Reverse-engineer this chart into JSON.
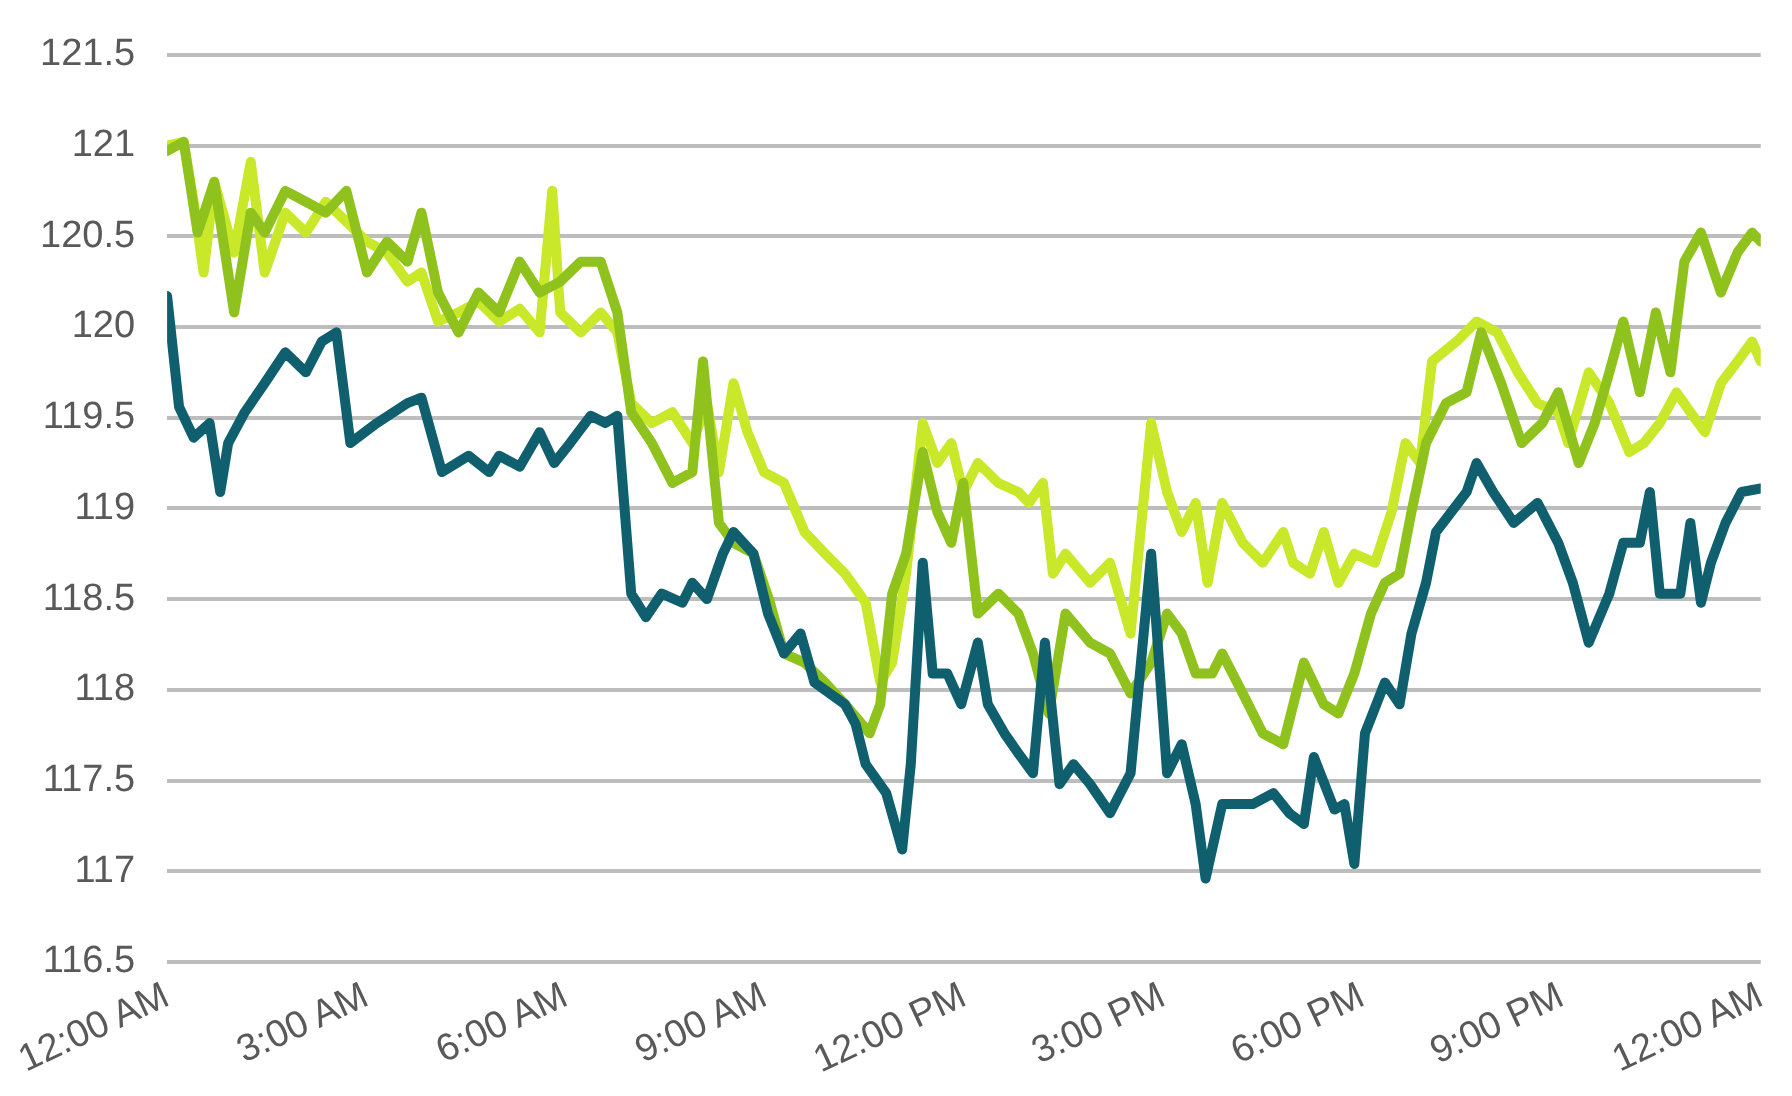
{
  "chart_data": {
    "type": "line",
    "xlim": [
      0,
      24
    ],
    "xticks": [
      {
        "value": 0,
        "label": "12:00 AM"
      },
      {
        "value": 3,
        "label": "3:00 AM"
      },
      {
        "value": 6,
        "label": "6:00 AM"
      },
      {
        "value": 9,
        "label": "9:00 AM"
      },
      {
        "value": 12,
        "label": "12:00 PM"
      },
      {
        "value": 15,
        "label": "3:00 PM"
      },
      {
        "value": 18,
        "label": "6:00 PM"
      },
      {
        "value": 21,
        "label": "9:00 PM"
      },
      {
        "value": 24,
        "label": "12:00 AM"
      }
    ],
    "ylim": [
      116.5,
      121.5
    ],
    "yticks": [
      116.5,
      117,
      117.5,
      118,
      118.5,
      119,
      119.5,
      120,
      120.5,
      121,
      121.5
    ],
    "grid": "y",
    "marker": "none",
    "line_style": "solid",
    "series": [
      {
        "color": "#0f5f6f",
        "x": [
          0,
          0.18,
          0.4,
          0.64,
          0.8,
          0.92,
          1.17,
          1.47,
          1.78,
          2.09,
          2.33,
          2.55,
          2.76,
          3.16,
          3.62,
          3.83,
          4.14,
          4.54,
          4.85,
          5.0,
          5.31,
          5.61,
          5.83,
          6.07,
          6.38,
          6.6,
          6.78,
          6.99,
          7.21,
          7.45,
          7.76,
          7.91,
          8.13,
          8.37,
          8.53,
          8.83,
          9.05,
          9.29,
          9.54,
          9.75,
          10.21,
          10.37,
          10.52,
          10.83,
          11.07,
          11.2,
          11.38,
          11.53,
          11.75,
          11.96,
          12.21,
          12.36,
          12.61,
          12.82,
          13.04,
          13.22,
          13.44,
          13.65,
          13.9,
          14.2,
          14.51,
          14.82,
          15.06,
          15.28,
          15.49,
          15.64,
          15.89,
          16.35,
          16.66,
          16.9,
          17.12,
          17.27,
          17.58,
          17.73,
          17.88,
          18.04,
          18.34,
          18.56,
          18.74,
          18.96,
          19.11,
          19.57,
          19.72,
          19.97,
          20.28,
          20.64,
          20.95,
          21.17,
          21.41,
          21.72,
          21.93,
          22.18,
          22.33,
          22.48,
          22.79,
          22.94,
          23.1,
          23.25,
          23.47,
          23.71,
          24
        ],
        "values": [
          120.17,
          119.56,
          119.39,
          119.47,
          119.09,
          119.36,
          119.53,
          119.69,
          119.86,
          119.75,
          119.92,
          119.97,
          119.36,
          119.47,
          119.58,
          119.61,
          119.2,
          119.29,
          119.2,
          119.29,
          119.23,
          119.42,
          119.25,
          119.36,
          119.51,
          119.47,
          119.51,
          118.53,
          118.4,
          118.53,
          118.48,
          118.59,
          118.5,
          118.75,
          118.87,
          118.75,
          118.42,
          118.2,
          118.31,
          118.04,
          117.92,
          117.81,
          117.59,
          117.43,
          117.12,
          117.59,
          118.7,
          118.09,
          118.09,
          117.92,
          118.26,
          117.92,
          117.76,
          117.65,
          117.54,
          118.26,
          117.48,
          117.59,
          117.48,
          117.32,
          117.54,
          118.75,
          117.54,
          117.7,
          117.37,
          116.96,
          117.37,
          117.37,
          117.43,
          117.32,
          117.26,
          117.63,
          117.34,
          117.37,
          117.04,
          117.76,
          118.04,
          117.92,
          118.31,
          118.59,
          118.87,
          119.09,
          119.25,
          119.09,
          118.92,
          119.03,
          118.81,
          118.59,
          118.26,
          118.53,
          118.81,
          118.81,
          119.09,
          118.53,
          118.53,
          118.92,
          118.48,
          118.7,
          118.92,
          119.09,
          119.11
        ]
      },
      {
        "color": "#8fc21c",
        "x": [
          0,
          0.25,
          0.46,
          0.71,
          1.01,
          1.26,
          1.47,
          1.78,
          2.09,
          2.39,
          2.7,
          3.01,
          3.31,
          3.62,
          3.83,
          4.08,
          4.39,
          4.69,
          5.0,
          5.31,
          5.61,
          5.92,
          6.23,
          6.53,
          6.78,
          6.99,
          7.3,
          7.61,
          7.91,
          8.07,
          8.31,
          8.53,
          8.83,
          9.08,
          9.29,
          9.6,
          9.91,
          10.21,
          10.58,
          10.74,
          10.92,
          11.13,
          11.38,
          11.6,
          11.81,
          11.99,
          12.21,
          12.52,
          12.82,
          13.04,
          13.28,
          13.53,
          13.9,
          14.2,
          14.51,
          14.82,
          15.06,
          15.28,
          15.49,
          15.74,
          15.89,
          16.2,
          16.5,
          16.81,
          17.12,
          17.42,
          17.64,
          17.88,
          18.13,
          18.34,
          18.56,
          18.74,
          18.96,
          19.26,
          19.57,
          19.79,
          20.09,
          20.4,
          20.71,
          20.95,
          21.26,
          21.5,
          21.72,
          21.93,
          22.18,
          22.42,
          22.64,
          22.85,
          23.1,
          23.4,
          23.65,
          23.87,
          24
        ],
        "values": [
          120.97,
          121.02,
          120.52,
          120.8,
          120.08,
          120.63,
          120.52,
          120.75,
          120.69,
          120.63,
          120.75,
          120.3,
          120.47,
          120.36,
          120.63,
          120.19,
          119.97,
          120.19,
          120.08,
          120.36,
          120.19,
          120.25,
          120.36,
          120.36,
          120.08,
          119.53,
          119.36,
          119.14,
          119.2,
          119.81,
          118.92,
          118.81,
          118.75,
          118.48,
          118.2,
          118.15,
          118.04,
          117.92,
          117.76,
          117.92,
          118.53,
          118.75,
          119.31,
          118.98,
          118.81,
          119.14,
          118.42,
          118.53,
          118.42,
          118.2,
          117.87,
          118.42,
          118.26,
          118.2,
          117.98,
          118.15,
          118.42,
          118.31,
          118.09,
          118.09,
          118.2,
          117.98,
          117.76,
          117.7,
          118.15,
          117.92,
          117.87,
          118.09,
          118.42,
          118.59,
          118.64,
          118.98,
          119.36,
          119.58,
          119.64,
          119.97,
          119.69,
          119.36,
          119.47,
          119.64,
          119.25,
          119.47,
          119.75,
          120.03,
          119.64,
          120.08,
          119.75,
          120.36,
          120.52,
          120.19,
          120.41,
          120.52,
          120.47
        ]
      },
      {
        "color": "#c9e82a",
        "x": [
          0,
          0.25,
          0.4,
          0.55,
          0.71,
          1.01,
          1.26,
          1.47,
          1.78,
          2.09,
          2.39,
          2.7,
          3.01,
          3.31,
          3.62,
          3.83,
          4.08,
          4.39,
          4.69,
          5.0,
          5.31,
          5.61,
          5.8,
          5.92,
          6.23,
          6.53,
          6.78,
          6.99,
          7.3,
          7.61,
          7.91,
          8.13,
          8.31,
          8.53,
          8.74,
          8.99,
          9.29,
          9.6,
          9.91,
          10.21,
          10.52,
          10.74,
          10.92,
          11.13,
          11.38,
          11.6,
          11.81,
          11.99,
          12.21,
          12.52,
          12.82,
          12.98,
          13.19,
          13.34,
          13.53,
          13.9,
          14.2,
          14.51,
          14.82,
          15.06,
          15.28,
          15.49,
          15.67,
          15.89,
          16.2,
          16.5,
          16.81,
          16.96,
          17.21,
          17.42,
          17.64,
          17.88,
          18.19,
          18.44,
          18.65,
          18.87,
          19.05,
          19.42,
          19.72,
          20.03,
          20.34,
          20.64,
          20.95,
          21.1,
          21.41,
          21.72,
          22.02,
          22.24,
          22.48,
          22.73,
          22.94,
          23.16,
          23.4,
          23.65,
          23.87,
          24
        ],
        "values": [
          121,
          121.02,
          120.69,
          120.3,
          120.8,
          120.41,
          120.91,
          120.3,
          120.63,
          120.52,
          120.69,
          120.58,
          120.47,
          120.41,
          120.25,
          120.3,
          120.03,
          120.08,
          120.14,
          120.03,
          120.1,
          119.97,
          120.75,
          120.08,
          119.97,
          120.08,
          119.97,
          119.58,
          119.47,
          119.53,
          119.36,
          119.58,
          119.2,
          119.69,
          119.42,
          119.2,
          119.14,
          118.87,
          118.75,
          118.64,
          118.48,
          118.04,
          118.15,
          118.64,
          119.47,
          119.25,
          119.36,
          119.09,
          119.25,
          119.14,
          119.09,
          119.03,
          119.14,
          118.64,
          118.75,
          118.59,
          118.7,
          118.31,
          119.47,
          119.09,
          118.87,
          119.03,
          118.59,
          119.03,
          118.81,
          118.7,
          118.87,
          118.7,
          118.64,
          118.87,
          118.59,
          118.75,
          118.7,
          118.98,
          119.36,
          119.25,
          119.81,
          119.92,
          120.03,
          119.97,
          119.75,
          119.58,
          119.53,
          119.36,
          119.75,
          119.58,
          119.31,
          119.36,
          119.47,
          119.64,
          119.53,
          119.42,
          119.69,
          119.81,
          119.92,
          119.81
        ]
      }
    ]
  }
}
